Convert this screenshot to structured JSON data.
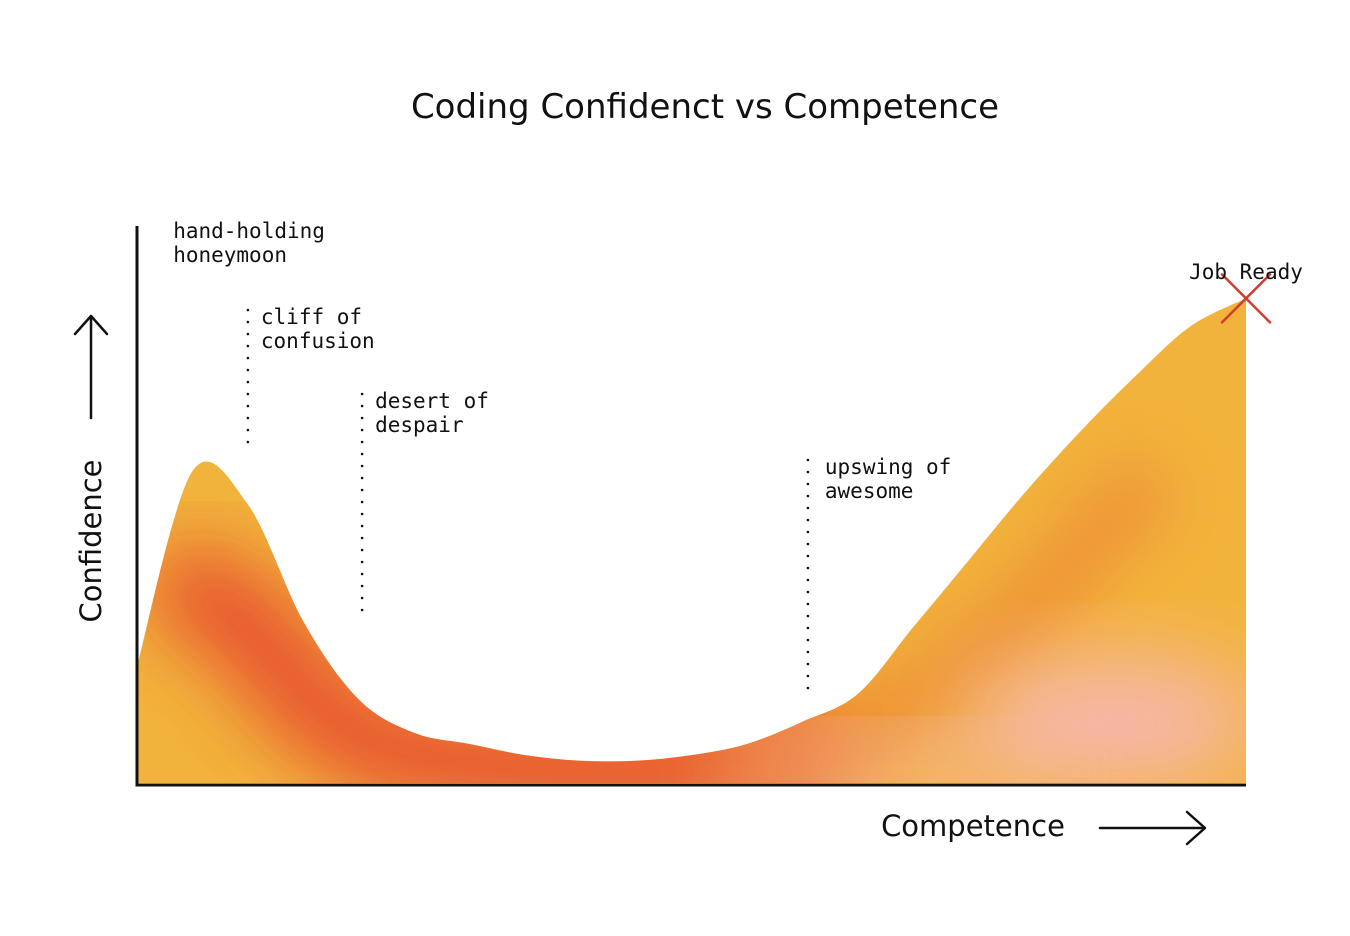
{
  "chart_data": {
    "type": "area",
    "title": "Coding Confidenct vs Competence",
    "xlabel": "Competence",
    "ylabel": "Confidence",
    "x": [
      0,
      5,
      10,
      15,
      20,
      25,
      30,
      35,
      40,
      45,
      50,
      55,
      60,
      65,
      70,
      75,
      80,
      85,
      90,
      95,
      100
    ],
    "y": [
      21,
      56,
      50,
      29,
      15,
      9,
      7,
      5,
      4,
      4,
      5,
      7,
      11,
      16,
      28,
      40,
      52,
      63,
      73,
      82,
      87
    ],
    "xlim": [
      0,
      100
    ],
    "ylim": [
      0,
      100
    ],
    "grid": false,
    "legend": "none",
    "axis_ticks": "none",
    "colors": {
      "outer": "#f2b33c",
      "core": "#e6452f",
      "highlight": "#f7b8bd",
      "marker": "#d63a2f",
      "axis": "#111111"
    },
    "annotations": [
      {
        "id": "honeymoon",
        "lines": [
          "hand-holding",
          "honeymoon"
        ],
        "x": 2,
        "y": 87,
        "guide": false
      },
      {
        "id": "cliff",
        "lines": [
          "cliff of",
          "confusion"
        ],
        "x": 10,
        "y": 59,
        "guide": true
      },
      {
        "id": "desert",
        "lines": [
          "desert of",
          "despair"
        ],
        "x": 20.3,
        "y": 29,
        "guide": true
      },
      {
        "id": "upswing",
        "lines": [
          "upswing of",
          "awesome"
        ],
        "x": 60.5,
        "y": 15,
        "guide": true
      },
      {
        "id": "job-ready",
        "lines": [
          "Job Ready"
        ],
        "x": 100,
        "y": 87,
        "guide": false,
        "marker": "x"
      }
    ]
  }
}
